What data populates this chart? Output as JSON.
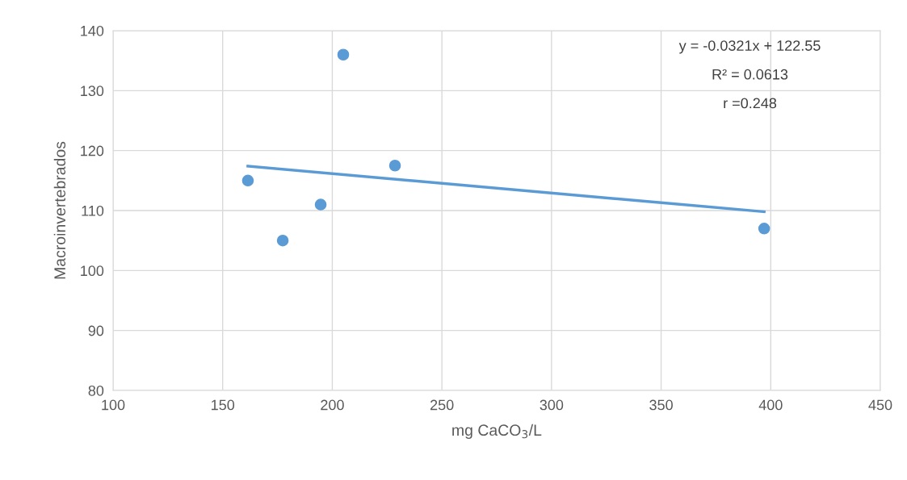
{
  "chart_data": {
    "type": "scatter",
    "xlabel": "mg CaCO$_{3}$/L",
    "ylabel": "Macroinvertebrados",
    "series": [
      {
        "color": "#5b9bd5",
        "x": [
          161.5,
          177.4,
          194.7,
          205,
          228.6,
          397
        ],
        "values": [
          115,
          105,
          111,
          136,
          117.5,
          107
        ],
        "marker": "circle"
      },
      {
        "type": "line",
        "color": "#5b9bd5",
        "x": [
          161.5,
          397
        ],
        "values": [
          117.4,
          109.8
        ],
        "marker": "none",
        "line_style": "solid"
      }
    ],
    "annotations": [
      "y = -0.0321x + 122.55",
      "R² = 0.0613",
      "r =0.248"
    ],
    "xlim": [
      100,
      450
    ],
    "xticks": [
      100,
      150,
      200,
      250,
      300,
      350,
      400,
      450
    ],
    "ylim": [
      80,
      140
    ],
    "yticks": [
      80,
      90,
      100,
      110,
      120,
      130,
      140
    ],
    "grid": true
  }
}
